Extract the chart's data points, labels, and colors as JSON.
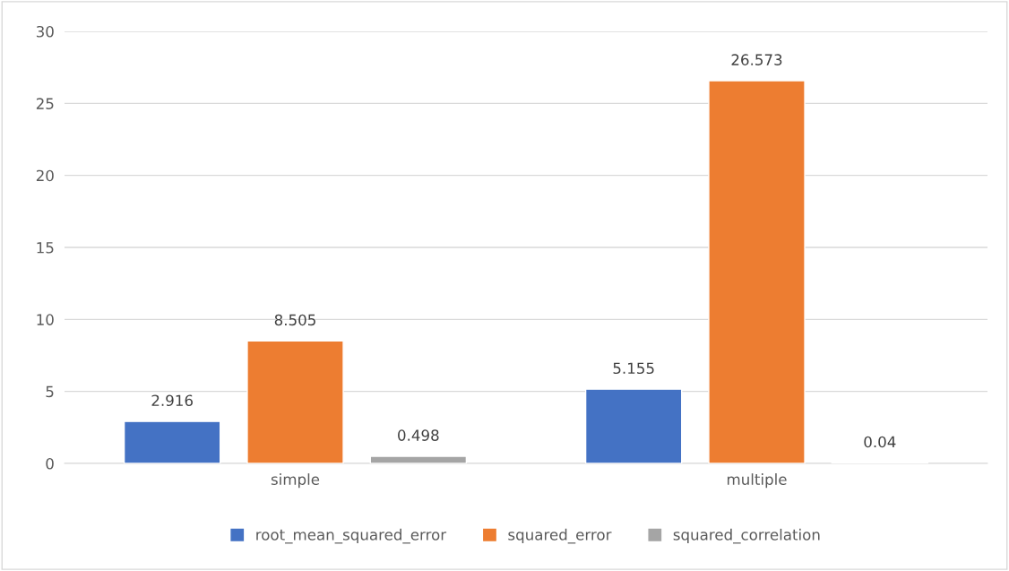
{
  "chart_data": {
    "type": "bar",
    "categories": [
      "simple",
      "multiple"
    ],
    "series": [
      {
        "name": "root_mean_squared_error",
        "color": "#4472c4",
        "values": [
          2.916,
          5.155
        ]
      },
      {
        "name": "squared_error",
        "color": "#ed7d31",
        "values": [
          8.505,
          26.573
        ]
      },
      {
        "name": "squared_correlation",
        "color": "#a5a5a5",
        "values": [
          0.498,
          0.04
        ]
      }
    ],
    "ylim": [
      0,
      30
    ],
    "yticks": [
      0,
      5,
      10,
      15,
      20,
      25,
      30
    ],
    "grid": "y",
    "legend": "bottom",
    "data_labels": true
  }
}
